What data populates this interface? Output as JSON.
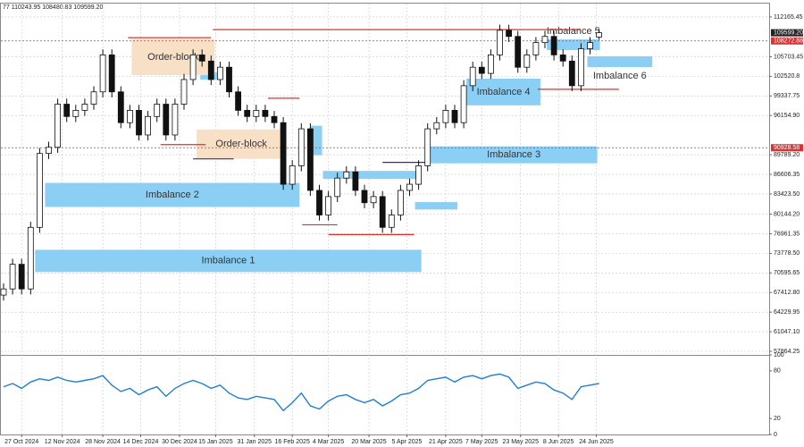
{
  "chart_data": {
    "type": "candlestick",
    "header": "77 110243.95 108480.83 109599.20",
    "ylim": [
      57285,
      114335
    ],
    "yticks": [
      112165.45,
      105703.45,
      102520.8,
      99337.75,
      {
        "value": 96154.9,
        "label": "96154.90"
      },
      {
        "value": 89789.2,
        "label": "89789.20"
      },
      86606.35,
      {
        "value": 83423.5,
        "label": "83423.50"
      },
      {
        "value": 80144.2,
        "label": "80144.20"
      },
      76961.35,
      {
        "value": 73778.5,
        "label": "73778.50"
      },
      70595.65,
      {
        "value": 67412.8,
        "label": "67412.80"
      },
      64229.95,
      {
        "value": 61047.1,
        "label": "61047.10"
      },
      57864.25
    ],
    "xticks": [
      {
        "value": 2,
        "label": "27 Oct 2024"
      },
      {
        "value": 6.5,
        "label": "12 Nov 2024"
      },
      {
        "value": 11,
        "label": "28 Nov 2024"
      },
      {
        "value": 15.2,
        "label": "14 Dec 2024"
      },
      {
        "value": 19.5,
        "label": "30 Dec 2024"
      },
      {
        "value": 23.5,
        "label": "15 Jan 2025"
      },
      {
        "value": 27.8,
        "label": "31 Jan 2025"
      },
      {
        "value": 32,
        "label": "16 Feb 2025"
      },
      {
        "value": 36,
        "label": "4 Mar 2025"
      },
      {
        "value": 40.5,
        "label": "20 Mar 2025"
      },
      {
        "value": 44.7,
        "label": "5 Apr 2025"
      },
      {
        "value": 49,
        "label": "21 Apr 2025"
      },
      {
        "value": 53,
        "label": "7 May 2025"
      },
      {
        "value": 57.3,
        "label": "23 May 2025"
      },
      {
        "value": 61.5,
        "label": "8 Jun 2025"
      },
      {
        "value": 65.7,
        "label": "24 Jun 2025"
      }
    ],
    "grid": true,
    "candles": [
      [
        67000,
        68900,
        66100,
        68000
      ],
      [
        68000,
        72900,
        67100,
        72000
      ],
      [
        72000,
        72900,
        67100,
        68000
      ],
      [
        68000,
        78900,
        67100,
        78000
      ],
      [
        78000,
        90900,
        77100,
        90000
      ],
      [
        90000,
        91900,
        89100,
        91000
      ],
      [
        91000,
        98900,
        90100,
        98000
      ],
      [
        98000,
        98900,
        95100,
        96000
      ],
      [
        96000,
        97900,
        95100,
        97000
      ],
      [
        97000,
        98900,
        96100,
        98000
      ],
      [
        98000,
        100900,
        97100,
        100000
      ],
      [
        100000,
        106900,
        99100,
        106000
      ],
      [
        106000,
        106900,
        99100,
        100000
      ],
      [
        100000,
        100900,
        94100,
        95000
      ],
      [
        95000,
        97900,
        94100,
        97000
      ],
      [
        97000,
        97900,
        92100,
        93000
      ],
      [
        93000,
        96900,
        92100,
        96000
      ],
      [
        96000,
        98900,
        95100,
        98000
      ],
      [
        98000,
        98900,
        92100,
        93000
      ],
      [
        93000,
        98900,
        92100,
        98000
      ],
      [
        98000,
        102900,
        97100,
        102000
      ],
      [
        102000,
        106900,
        101100,
        106000
      ],
      [
        106000,
        106900,
        104100,
        105000
      ],
      [
        105000,
        105900,
        101100,
        102000
      ],
      [
        102000,
        104900,
        101100,
        104000
      ],
      [
        104000,
        104900,
        99100,
        100000
      ],
      [
        100000,
        100900,
        96100,
        97000
      ],
      [
        97000,
        97900,
        95100,
        96000
      ],
      [
        96000,
        97900,
        95100,
        97000
      ],
      [
        97000,
        97900,
        95100,
        96000
      ],
      [
        96000,
        96900,
        94100,
        95000
      ],
      [
        95000,
        95900,
        84100,
        85000
      ],
      [
        85000,
        88900,
        84100,
        88000
      ],
      [
        88000,
        94900,
        87100,
        94000
      ],
      [
        94000,
        94900,
        83100,
        84000
      ],
      [
        84000,
        84900,
        79100,
        80000
      ],
      [
        80000,
        83900,
        79100,
        83000
      ],
      [
        83000,
        86900,
        82100,
        86000
      ],
      [
        86000,
        87900,
        85100,
        87000
      ],
      [
        87000,
        87900,
        83100,
        84000
      ],
      [
        84000,
        84900,
        81100,
        82000
      ],
      [
        82000,
        83900,
        81100,
        83000
      ],
      [
        83000,
        83900,
        77100,
        78000
      ],
      [
        78000,
        80900,
        77100,
        80000
      ],
      [
        80000,
        84900,
        79100,
        84000
      ],
      [
        84000,
        85900,
        83100,
        85000
      ],
      [
        85000,
        88900,
        84100,
        88000
      ],
      [
        88000,
        94900,
        87100,
        94000
      ],
      [
        94000,
        95900,
        93100,
        95000
      ],
      [
        95000,
        97900,
        94100,
        97000
      ],
      [
        97000,
        97900,
        94100,
        95000
      ],
      [
        95000,
        101900,
        94100,
        101000
      ],
      [
        101000,
        104900,
        100100,
        104000
      ],
      [
        104000,
        104900,
        102100,
        103000
      ],
      [
        103000,
        106900,
        102100,
        106000
      ],
      [
        106000,
        110900,
        105100,
        110000
      ],
      [
        110000,
        110900,
        108100,
        109000
      ],
      [
        109000,
        109900,
        103100,
        104000
      ],
      [
        104000,
        106900,
        103100,
        106000
      ],
      [
        106000,
        108900,
        105100,
        108000
      ],
      [
        108000,
        109900,
        107100,
        109000
      ],
      [
        109000,
        109900,
        105100,
        106000
      ],
      [
        106000,
        106900,
        104100,
        105000
      ],
      [
        105000,
        105900,
        100100,
        101000
      ],
      [
        101000,
        107900,
        100100,
        107000
      ],
      [
        107000,
        108900,
        106100,
        108000
      ],
      [
        108900,
        110243.95,
        108480.83,
        109599.2
      ]
    ],
    "zones": [
      {
        "label": "Imbalance 1",
        "low": 70744,
        "high": 74362,
        "start": 3.5,
        "end": 46.3,
        "color": "#8ccff5"
      },
      {
        "label": "Imbalance 2",
        "low": 81308,
        "high": 85216,
        "start": 4.6,
        "end": 32.8,
        "color": "#8ccff5"
      },
      {
        "low": 80900,
        "high": 82100,
        "start": 45.6,
        "end": 50.3,
        "color": "#8ccff5"
      },
      {
        "low": 85860,
        "high": 87166,
        "start": 35.4,
        "end": 46.3,
        "color": "#8ccff5"
      },
      {
        "low": 89700,
        "high": 94500,
        "start": 34,
        "end": 35.3,
        "color": "#8ccff5"
      },
      {
        "low": 102000,
        "high": 103200,
        "start": 21.8,
        "end": 24.2,
        "color": "#8ccff5"
      },
      {
        "label": "Imbalance 3",
        "low": 88399,
        "high": 91149,
        "start": 47.3,
        "end": 65.8,
        "color": "#8ccff5"
      },
      {
        "label": "Imbalance 4",
        "low": 97806,
        "high": 102147,
        "start": 51.3,
        "end": 59.5,
        "color": "#8ccff5"
      },
      {
        "label": "Imbalance 5",
        "low": 106778,
        "high": 108515,
        "start": 60.2,
        "end": 66.1,
        "color": "#8ccff5",
        "label_at": "above"
      },
      {
        "label": "Imbalance 6",
        "low": 104030,
        "high": 105767,
        "start": 64.7,
        "end": 71.9,
        "color": "#8ccff5",
        "label_at": "below"
      },
      {
        "label": "Order-block",
        "low": 102726,
        "high": 108515,
        "start": 14.2,
        "end": 23.4,
        "color": "#f7e0c6"
      },
      {
        "label": "Order-block",
        "low": 89124,
        "high": 93899,
        "start": 21.4,
        "end": 31.3,
        "color": "#f7e0c6"
      }
    ],
    "levels": [
      {
        "price": 110107,
        "start": 23.2,
        "end": 64,
        "color": "#e03030"
      },
      {
        "price": 108800,
        "start": 13.8,
        "end": 23,
        "color": "#e03030"
      },
      {
        "price": 98965,
        "start": 29.3,
        "end": 32.8,
        "color": "#e03030"
      },
      {
        "price": 78415,
        "start": 33.1,
        "end": 37,
        "color": "#e03030"
      },
      {
        "price": 76823,
        "start": 36,
        "end": 45.5,
        "color": "#e03030"
      },
      {
        "price": 100419,
        "start": 59.2,
        "end": 68.2,
        "color": "#e03030"
      },
      {
        "price": 91438,
        "start": 17.4,
        "end": 22.4,
        "color": "#e03030"
      },
      {
        "price": 89124,
        "start": 21,
        "end": 25.5,
        "color": "#2030c0"
      },
      {
        "price": 88545,
        "start": 42,
        "end": 47,
        "color": "#2030c0"
      }
    ],
    "price_markers": [
      {
        "value": 108272.88,
        "color": "#e03030"
      },
      {
        "value": 90928.58,
        "color": "#e03030"
      }
    ],
    "last_price": {
      "value": 109599.2,
      "label": "109599.20",
      "color": "#202020"
    },
    "indicator": {
      "ylim": [
        0,
        100
      ],
      "yticks": [
        0,
        20,
        80,
        100
      ],
      "color": "#1f7fd8",
      "values": [
        60,
        64,
        58,
        66,
        70,
        68,
        72,
        68,
        66,
        68,
        70,
        74,
        62,
        54,
        58,
        50,
        56,
        60,
        48,
        58,
        64,
        68,
        64,
        58,
        62,
        52,
        46,
        44,
        48,
        46,
        44,
        30,
        40,
        52,
        36,
        32,
        42,
        48,
        50,
        44,
        40,
        44,
        36,
        42,
        50,
        52,
        58,
        68,
        70,
        72,
        66,
        72,
        74,
        70,
        74,
        76,
        72,
        58,
        62,
        66,
        64,
        56,
        52,
        44,
        60,
        62,
        64
      ]
    }
  }
}
